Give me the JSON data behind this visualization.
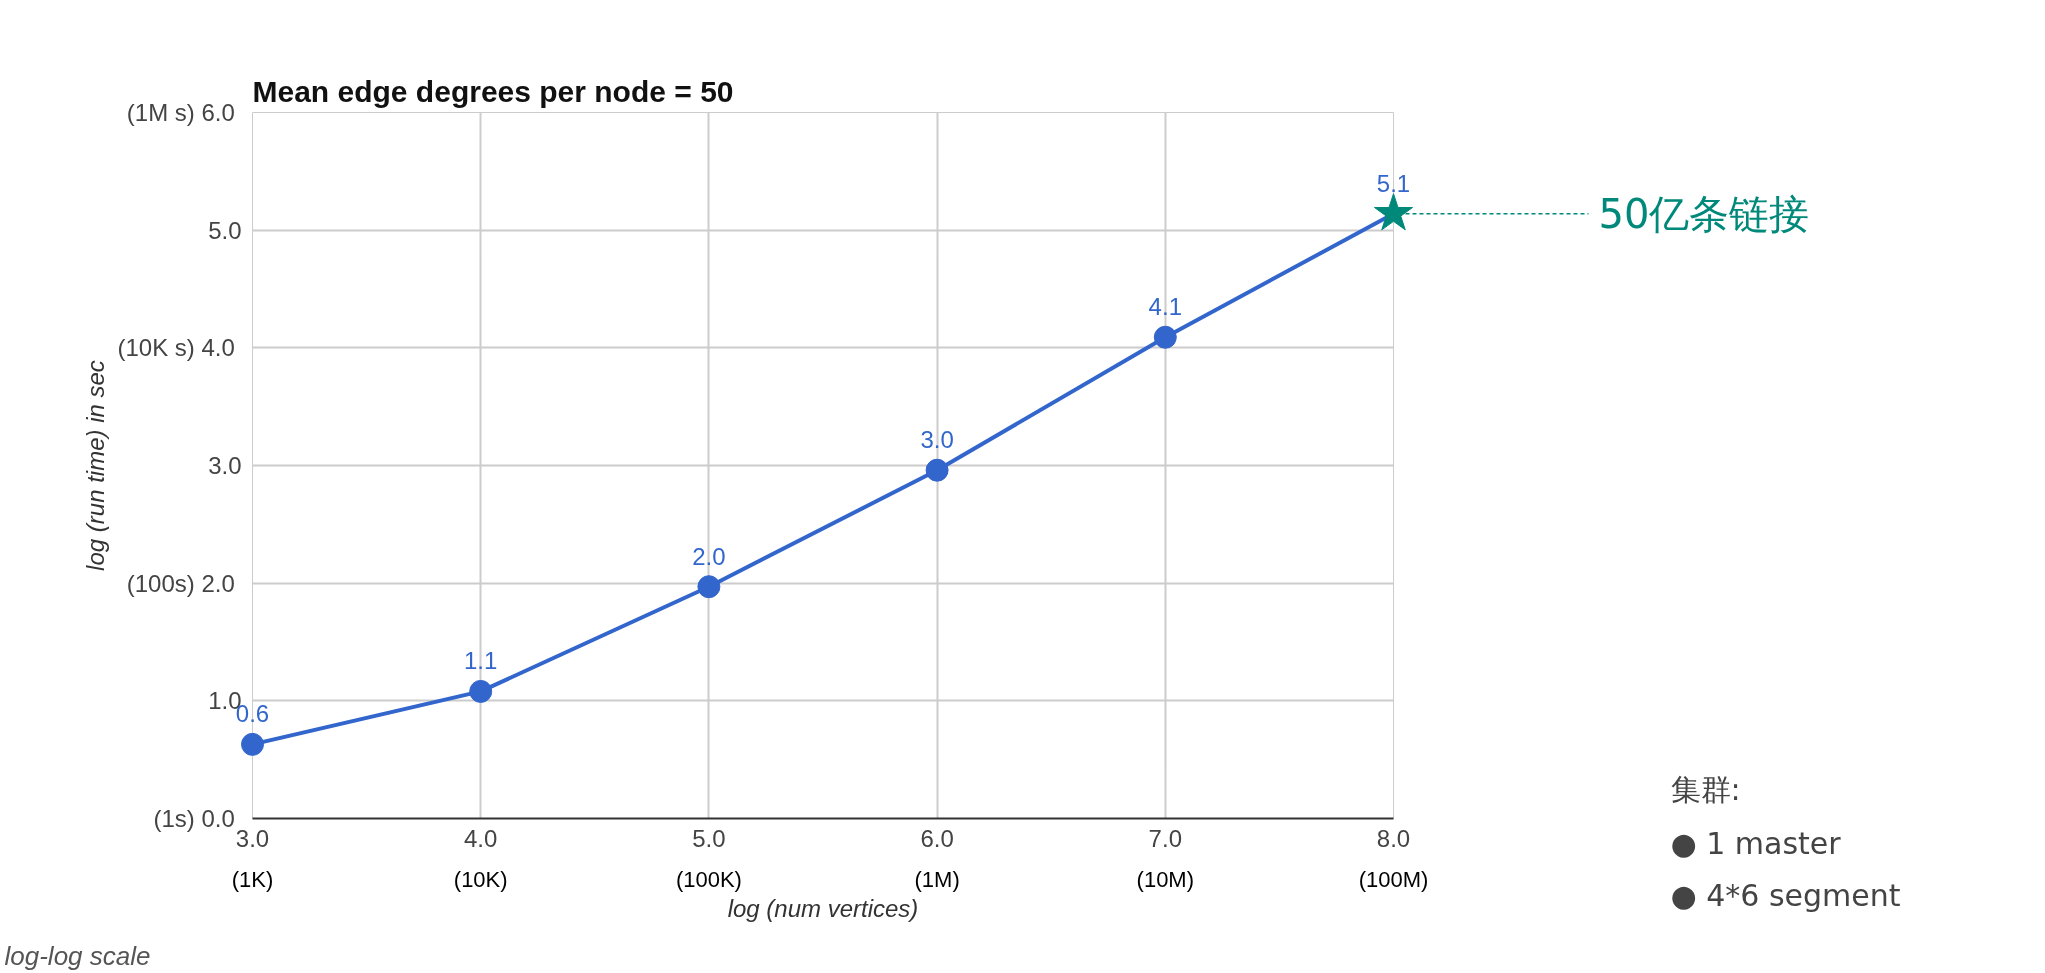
{
  "chart_data": {
    "type": "line",
    "title": "Mean edge degrees per node = 50",
    "xlabel": "log (num vertices)",
    "ylabel": "log (run time) in sec",
    "xlim": [
      3,
      8
    ],
    "ylim": [
      0,
      6
    ],
    "xticks": [
      {
        "value": 3,
        "label": "3.0"
      },
      {
        "value": 4,
        "label": "4.0"
      },
      {
        "value": 5,
        "label": "5.0"
      },
      {
        "value": 6,
        "label": "6.0"
      },
      {
        "value": 7,
        "label": "7.0"
      },
      {
        "value": 8,
        "label": "8.0"
      }
    ],
    "yticks": [
      {
        "value": 0,
        "label": "(1s)  0.0"
      },
      {
        "value": 1,
        "label": "1.0"
      },
      {
        "value": 2,
        "label": "(100s)  2.0"
      },
      {
        "value": 3,
        "label": "3.0"
      },
      {
        "value": 4,
        "label": "(10K s)  4.0"
      },
      {
        "value": 5,
        "label": "5.0"
      },
      {
        "value": 6,
        "label": "(1M s)  6.0"
      }
    ],
    "grid": true,
    "series": [
      {
        "color": "#3366cc",
        "marker": "none",
        "x": [
          3,
          4,
          5,
          6,
          7,
          8
        ],
        "values": [
          0.63,
          1.08,
          1.97,
          2.96,
          4.09,
          5.14
        ],
        "value_labels": [
          "0.6",
          "1.1",
          "2.0",
          "3.0",
          "4.1",
          "5.1"
        ]
      },
      {
        "type": "scatter",
        "color": "#3366cc",
        "marker": "circle",
        "x": [
          3,
          4,
          5,
          6,
          7
        ],
        "values": [
          0.63,
          1.08,
          1.97,
          2.96,
          4.09
        ]
      },
      {
        "type": "scatter",
        "color": "#00897b",
        "marker": "star",
        "x": [
          8
        ],
        "values": [
          5.14
        ]
      }
    ],
    "annotations": [
      "50亿条链接",
      "log-log scale",
      "集群:",
      "●      1 master",
      "●      4*6 segment",
      "(1K)",
      "(10K)",
      "(100K)",
      "(1M)",
      "(10M)",
      "(100M)"
    ]
  }
}
